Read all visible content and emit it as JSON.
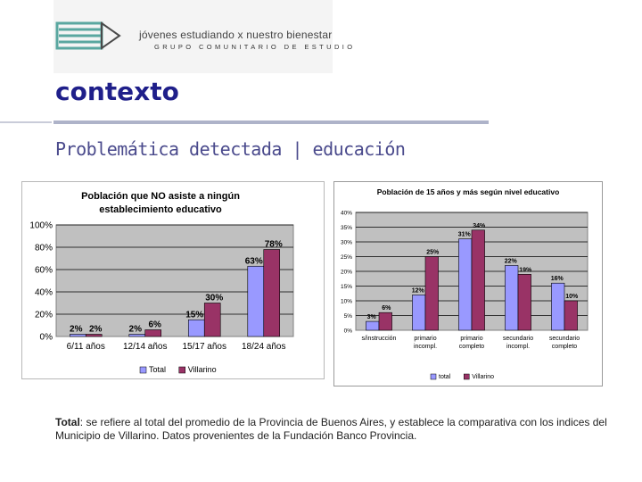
{
  "logo": {
    "line1": "jóvenes estudiando x nuestro bienestar",
    "line2": "GRUPO COMUNITARIO DE ESTUDIO"
  },
  "title": "contexto",
  "subtitle": "Problemática detectada | educación",
  "caption": {
    "bold": "Total",
    "text": ": se refiere al total del promedio de la Provincia de Buenos Aires, y establece la comparativa con los indices del Municipio de Villarino. Datos provenientes de la Fundación Banco Provincia."
  },
  "colors": {
    "total": "#9999ff",
    "villarino": "#993366",
    "plot_bg": "#c0c0c0",
    "title_color": "#1f1f8a"
  },
  "chart_data": [
    {
      "type": "bar",
      "title": "Población que NO asiste a ningún establecimiento educativo",
      "categories": [
        "6/11 años",
        "12/14 años",
        "15/17 años",
        "18/24 años"
      ],
      "series": [
        {
          "name": "Total",
          "values": [
            2,
            2,
            15,
            63
          ],
          "labels": [
            "2%",
            "2%",
            "15%",
            "63%"
          ]
        },
        {
          "name": "Villarino",
          "values": [
            2,
            6,
            30,
            78
          ],
          "labels": [
            "2%",
            "6%",
            "30%",
            "78%"
          ]
        }
      ],
      "yticks": [
        "0%",
        "20%",
        "40%",
        "60%",
        "80%",
        "100%"
      ],
      "ylim": [
        0,
        100
      ],
      "legend": "bottom"
    },
    {
      "type": "bar",
      "title": "Población de 15 años y más según nivel educativo",
      "categories": [
        [
          "s/instrucción"
        ],
        [
          "primario",
          "incompl."
        ],
        [
          "primario",
          "completo"
        ],
        [
          "secundario",
          "incompl."
        ],
        [
          "secundario",
          "completo"
        ]
      ],
      "series": [
        {
          "name": "total",
          "values": [
            3,
            12,
            31,
            22,
            16
          ],
          "labels": [
            "3%",
            "12%",
            "31%",
            "22%",
            "16%"
          ]
        },
        {
          "name": "Villarino",
          "values": [
            6,
            25,
            34,
            19,
            10
          ],
          "labels": [
            "6%",
            "25%",
            "34%",
            "19%",
            "10%"
          ]
        }
      ],
      "yticks": [
        "0%",
        "5%",
        "10%",
        "15%",
        "20%",
        "25%",
        "30%",
        "35%",
        "40%"
      ],
      "ylim": [
        0,
        40
      ],
      "legend": "bottom"
    }
  ]
}
